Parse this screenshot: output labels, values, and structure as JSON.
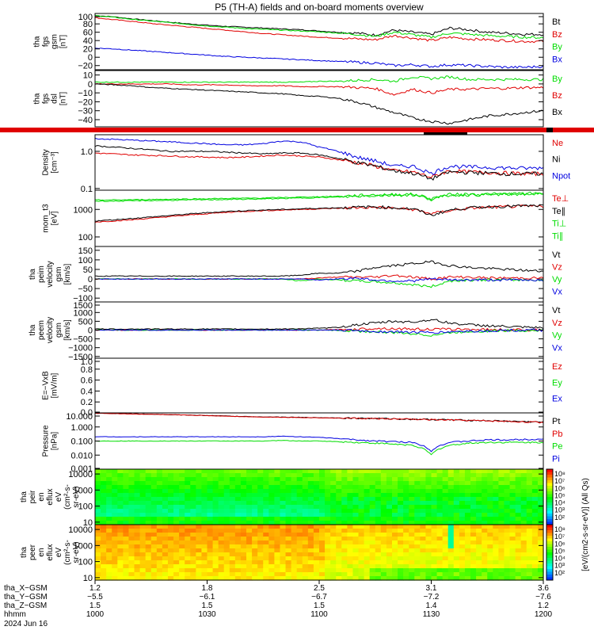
{
  "title": "P5 (TH-A) fields and on-board moments overview",
  "colors": {
    "black": "#000000",
    "red": "#e00000",
    "green": "#00dd00",
    "blue": "#0000e0"
  },
  "chart_data": [
    {
      "type": "line",
      "panel": "fgs_gsm",
      "ylabel": [
        "tha",
        "fgs",
        "gsm",
        "[nT]"
      ],
      "ylim": [
        -30,
        105
      ],
      "yticks": [
        "100",
        "80",
        "60",
        "40",
        "20",
        "0",
        "−20"
      ],
      "series": [
        {
          "name": "Bt",
          "color": "black",
          "values": [
            100,
            97,
            92,
            88,
            84,
            80,
            77,
            74,
            72,
            70,
            68,
            66,
            63,
            60,
            58,
            53,
            65,
            60,
            55,
            70,
            66,
            60,
            58,
            55,
            55
          ]
        },
        {
          "name": "Bz",
          "color": "red",
          "values": [
            95,
            90,
            86,
            81,
            77,
            73,
            69,
            65,
            61,
            57,
            54,
            51,
            48,
            46,
            44,
            42,
            52,
            46,
            40,
            48,
            44,
            42,
            40,
            38,
            38
          ]
        },
        {
          "name": "By",
          "color": "green",
          "values": [
            100,
            96,
            91,
            87,
            83,
            79,
            75,
            72,
            69,
            67,
            65,
            63,
            61,
            58,
            55,
            50,
            60,
            54,
            48,
            58,
            55,
            52,
            50,
            48,
            47
          ]
        },
        {
          "name": "Bx",
          "color": "blue",
          "values": [
            22,
            20,
            17,
            14,
            11,
            8,
            5,
            2,
            0,
            -2,
            -4,
            -6,
            -8,
            -10,
            -12,
            -14,
            -20,
            -18,
            -22,
            -18,
            -20,
            -22,
            -24,
            -24,
            -22
          ]
        }
      ]
    },
    {
      "type": "line",
      "panel": "fgs_dsl",
      "ylabel": [
        "tha",
        "fgs",
        "dsl",
        "[nT]"
      ],
      "ylim": [
        -48,
        15
      ],
      "yticks": [
        "10",
        "0",
        "−10",
        "−20",
        "−30",
        "−40"
      ],
      "series": [
        {
          "name": "By",
          "color": "green",
          "values": [
            2,
            2,
            2,
            2,
            2,
            2,
            2,
            2,
            2,
            2,
            2,
            2,
            3,
            3,
            4,
            5,
            3,
            8,
            6,
            8,
            5,
            5,
            5,
            5,
            5
          ]
        },
        {
          "name": "Bz",
          "color": "red",
          "values": [
            0,
            0,
            0,
            0,
            0,
            -1,
            -1,
            -1,
            -2,
            -2,
            -2,
            -3,
            -3,
            -3,
            -4,
            -5,
            -12,
            -6,
            -10,
            -6,
            -6,
            -5,
            -5,
            -4,
            -4
          ]
        },
        {
          "name": "Bx",
          "color": "black",
          "values": [
            0,
            -1,
            -2,
            -4,
            -5,
            -6,
            -7,
            -8,
            -9,
            -10,
            -11,
            -13,
            -14,
            -16,
            -20,
            -26,
            -32,
            -38,
            -42,
            -44,
            -40,
            -36,
            -34,
            -32,
            -30
          ]
        }
      ]
    },
    {
      "type": "line",
      "panel": "density",
      "ylabel": [
        "Density",
        "[cm⁻³]"
      ],
      "log": true,
      "ylim": [
        0.09,
        2.8
      ],
      "yticks": [
        "1.0",
        "0.1"
      ],
      "series": [
        {
          "name": "Ne",
          "color": "red",
          "values": [
            0.9,
            0.85,
            0.8,
            0.78,
            0.75,
            0.72,
            0.7,
            0.68,
            0.7,
            0.75,
            0.8,
            0.75,
            0.7,
            0.6,
            0.5,
            0.4,
            0.3,
            0.28,
            0.2,
            0.3,
            0.28,
            0.27,
            0.26,
            0.25,
            0.25
          ]
        },
        {
          "name": "Ni",
          "color": "black",
          "values": [
            1.4,
            1.3,
            1.2,
            1.1,
            1.0,
            1.0,
            1.0,
            0.95,
            0.9,
            0.85,
            0.9,
            0.9,
            0.8,
            0.65,
            0.5,
            0.4,
            0.3,
            0.26,
            0.18,
            0.28,
            0.27,
            0.26,
            0.25,
            0.25,
            0.25
          ]
        },
        {
          "name": "Npot",
          "color": "blue",
          "values": [
            2.2,
            2.1,
            2.0,
            1.9,
            1.8,
            1.7,
            1.6,
            1.5,
            1.5,
            1.6,
            1.9,
            1.8,
            1.3,
            1.0,
            0.7,
            0.55,
            0.4,
            0.4,
            0.25,
            0.4,
            0.38,
            0.37,
            0.36,
            0.35,
            0.36
          ]
        }
      ]
    },
    {
      "type": "line",
      "panel": "temperature",
      "ylabel": [
        "mom_t3",
        "[eV]"
      ],
      "log": true,
      "ylim": [
        45,
        5000
      ],
      "yticks": [
        "1000",
        "100"
      ],
      "series": [
        {
          "name": "Te⊥",
          "color": "red",
          "values": [
            350,
            380,
            420,
            480,
            550,
            620,
            700,
            780,
            850,
            900,
            950,
            1000,
            1050,
            1100,
            1150,
            1200,
            1100,
            1000,
            700,
            900,
            1100,
            1200,
            1250,
            1300,
            1300
          ]
        },
        {
          "name": "Te∥",
          "color": "black",
          "values": [
            380,
            420,
            470,
            530,
            600,
            680,
            760,
            840,
            900,
            950,
            1000,
            1050,
            1100,
            1150,
            1200,
            1250,
            1150,
            1050,
            600,
            950,
            1150,
            1250,
            1300,
            1350,
            1350
          ]
        },
        {
          "name": "Ti⊥",
          "color": "green",
          "values": [
            2200,
            2200,
            2250,
            2300,
            2350,
            2400,
            2450,
            2500,
            2550,
            2600,
            2700,
            2800,
            2900,
            3000,
            3200,
            3400,
            3500,
            3600,
            2500,
            3500,
            3600,
            3600,
            3700,
            3800,
            3800
          ]
        },
        {
          "name": "Ti∥",
          "color": "green",
          "values": [
            2000,
            2000,
            2050,
            2100,
            2150,
            2200,
            2250,
            2300,
            2350,
            2400,
            2500,
            2600,
            2700,
            2800,
            3000,
            3200,
            3300,
            3400,
            2300,
            3300,
            3400,
            3400,
            3500,
            3600,
            3600
          ]
        }
      ]
    },
    {
      "type": "line",
      "panel": "peim_velocity",
      "ylabel": [
        "tha",
        "peim",
        "velocity",
        "gsm",
        "[km/s]"
      ],
      "ylim": [
        -120,
        170
      ],
      "yticks": [
        "150",
        "100",
        "50",
        "0",
        "−50",
        "−100"
      ],
      "series": [
        {
          "name": "Vt",
          "color": "black",
          "values": [
            15,
            15,
            15,
            15,
            15,
            15,
            15,
            15,
            15,
            15,
            15,
            20,
            30,
            30,
            40,
            60,
            70,
            80,
            90,
            70,
            60,
            55,
            50,
            45,
            40
          ]
        },
        {
          "name": "Vz",
          "color": "red",
          "values": [
            0,
            0,
            0,
            0,
            0,
            0,
            0,
            0,
            0,
            0,
            0,
            0,
            5,
            10,
            10,
            10,
            20,
            10,
            0,
            10,
            10,
            5,
            5,
            5,
            5
          ]
        },
        {
          "name": "Vy",
          "color": "green",
          "values": [
            0,
            0,
            0,
            0,
            0,
            0,
            0,
            0,
            0,
            0,
            0,
            -10,
            0,
            -5,
            -10,
            -15,
            -20,
            -30,
            -40,
            -10,
            -5,
            -5,
            -5,
            -5,
            -5
          ]
        },
        {
          "name": "Vx",
          "color": "blue",
          "values": [
            0,
            0,
            0,
            0,
            0,
            0,
            0,
            0,
            0,
            0,
            0,
            0,
            -5,
            0,
            5,
            -5,
            -10,
            -10,
            0,
            -5,
            -5,
            -5,
            -5,
            -5,
            -5
          ]
        }
      ]
    },
    {
      "type": "line",
      "panel": "peem_velocity",
      "ylabel": [
        "tha",
        "peem",
        "velocity",
        "gsm",
        "[km/s]"
      ],
      "ylim": [
        -1600,
        1600
      ],
      "yticks": [
        "1500",
        "1000",
        "500",
        "0",
        "−500",
        "−1000",
        "−1500"
      ],
      "series": [
        {
          "name": "Vt",
          "color": "black",
          "values": [
            60,
            60,
            60,
            60,
            60,
            60,
            60,
            60,
            60,
            60,
            60,
            80,
            100,
            150,
            300,
            400,
            500,
            450,
            600,
            400,
            300,
            250,
            200,
            150,
            120
          ]
        },
        {
          "name": "Vz",
          "color": "red",
          "values": [
            0,
            0,
            0,
            0,
            0,
            0,
            0,
            0,
            0,
            0,
            0,
            0,
            0,
            20,
            50,
            100,
            80,
            60,
            40,
            50,
            40,
            30,
            20,
            10,
            10
          ]
        },
        {
          "name": "Vy",
          "color": "green",
          "values": [
            0,
            0,
            0,
            0,
            0,
            0,
            0,
            0,
            0,
            0,
            0,
            0,
            0,
            -20,
            -60,
            -100,
            -150,
            -200,
            -300,
            -150,
            -80,
            -50,
            -30,
            -20,
            -10
          ]
        },
        {
          "name": "Vx",
          "color": "blue",
          "values": [
            0,
            0,
            0,
            0,
            0,
            0,
            0,
            0,
            0,
            0,
            0,
            0,
            0,
            0,
            -40,
            -80,
            -100,
            -120,
            -150,
            -100,
            -60,
            -40,
            -20,
            -10,
            -10
          ]
        }
      ]
    },
    {
      "type": "line",
      "panel": "efield",
      "ylabel": [
        "E=−VxB",
        "[mV/m]"
      ],
      "ylim": [
        0,
        1.0
      ],
      "yticks": [
        "1.0",
        "0.8",
        "0.6",
        "0.4",
        "0.2",
        "0.0"
      ],
      "series": [
        {
          "name": "Ez",
          "color": "red",
          "values": []
        },
        {
          "name": "Ey",
          "color": "green",
          "values": []
        },
        {
          "name": "Ex",
          "color": "blue",
          "values": []
        }
      ]
    },
    {
      "type": "line",
      "panel": "pressure",
      "ylabel": [
        "Pressure",
        "[nPa]"
      ],
      "log": true,
      "ylim": [
        0.001,
        10
      ],
      "yticks": [
        "10.000",
        "1.000",
        "0.100",
        "0.010",
        "0.001"
      ],
      "series": [
        {
          "name": "Pt",
          "color": "black",
          "values": [
            9.5,
            9,
            8.5,
            8,
            7.5,
            7,
            6.5,
            6,
            5.5,
            5.2,
            5,
            4.8,
            4.6,
            4.4,
            4.2,
            4,
            3.8,
            3.6,
            3.4,
            3.2,
            3,
            2.8,
            2.6,
            2.4,
            2.2
          ]
        },
        {
          "name": "Pb",
          "color": "red",
          "values": [
            9.4,
            8.9,
            8.4,
            7.9,
            7.4,
            6.9,
            6.4,
            5.9,
            5.4,
            5.1,
            4.9,
            4.7,
            4.5,
            4.3,
            4.1,
            3.9,
            3.7,
            3.5,
            3.3,
            3.1,
            2.9,
            2.7,
            2.5,
            2.3,
            2.1
          ]
        },
        {
          "name": "Pe",
          "color": "green",
          "values": [
            0.1,
            0.1,
            0.1,
            0.1,
            0.1,
            0.1,
            0.1,
            0.1,
            0.1,
            0.1,
            0.11,
            0.1,
            0.1,
            0.09,
            0.08,
            0.07,
            0.06,
            0.05,
            0.01,
            0.05,
            0.07,
            0.08,
            0.08,
            0.08,
            0.08
          ]
        },
        {
          "name": "Pi",
          "color": "blue",
          "values": [
            0.2,
            0.2,
            0.2,
            0.2,
            0.2,
            0.2,
            0.2,
            0.2,
            0.2,
            0.2,
            0.22,
            0.2,
            0.18,
            0.15,
            0.12,
            0.1,
            0.09,
            0.08,
            0.02,
            0.08,
            0.1,
            0.12,
            0.12,
            0.13,
            0.14
          ]
        }
      ]
    },
    {
      "type": "heatmap",
      "panel": "ion_spectrogram",
      "ylabel": [
        "tha",
        "peir",
        "en",
        "eflux",
        "eV",
        "(cm²-s-",
        "sr-eV)"
      ],
      "log": true,
      "ylim": [
        7,
        20000
      ],
      "yticks": [
        "10000",
        "1000",
        "100",
        "10"
      ]
    },
    {
      "type": "heatmap",
      "panel": "electron_spectrogram",
      "ylabel": [
        "tha",
        "peer",
        "en",
        "eflux",
        "eV",
        "(cm²-s-",
        "sr-eV)"
      ],
      "log": true,
      "ylim": [
        7,
        20000
      ],
      "yticks": [
        "10000",
        "1000",
        "100",
        "10"
      ]
    }
  ],
  "colorbars": [
    {
      "label": "[eV/(cm2-s-sr-eV)] (All Qs)",
      "ticks": [
        "10⁸",
        "10⁷",
        "10⁶",
        "10⁵",
        "10⁴",
        "10³",
        "10²"
      ]
    },
    {
      "label": "[eV/(cm2-s-sr-eV)] (All Qs)",
      "ticks": [
        "10⁸",
        "10⁷",
        "10⁶",
        "10⁵",
        "10⁴",
        "10³",
        "10²"
      ]
    }
  ],
  "x_axis": {
    "tick_columns": [
      {
        "thax": "1.2",
        "thay": "−5.5",
        "thaz": "1.5",
        "hhmm": "1000"
      },
      {
        "thax": "1.8",
        "thay": "−6.1",
        "thaz": "1.5",
        "hhmm": "1030"
      },
      {
        "thax": "2.5",
        "thay": "−6.7",
        "thaz": "1.5",
        "hhmm": "1100"
      },
      {
        "thax": "3.1",
        "thay": "−7.2",
        "thaz": "1.4",
        "hhmm": "1130"
      },
      {
        "thax": "3.6",
        "thay": "−7.6",
        "thaz": "1.2",
        "hhmm": "1200"
      }
    ],
    "row_labels": [
      "tha_X−GSM",
      "tha_Y−GSM",
      "tha_Z−GSM",
      "hhmm"
    ],
    "date": "2024 Jun 16"
  }
}
